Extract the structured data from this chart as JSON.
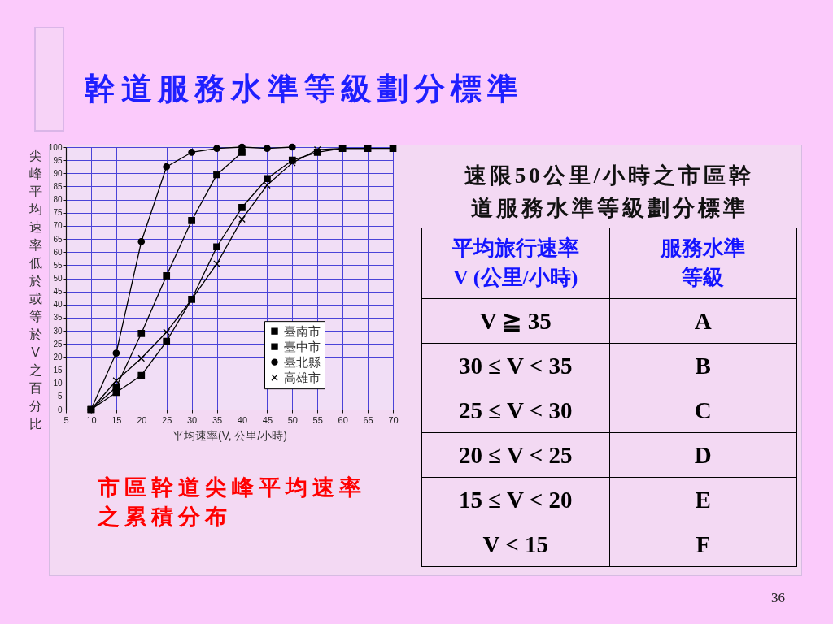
{
  "chart_data": [
    {
      "type": "line",
      "title": "幹道服務水準等級劃分標準",
      "xlabel": "平均速率(V, 公里/小時)",
      "ylabel": "尖峰平均速率低於或等於V之百分比",
      "series": [
        {
          "name": "臺南市",
          "color": "#000000",
          "marker": "square",
          "x": [
            10,
            15,
            20,
            25,
            30,
            35,
            40,
            45,
            50,
            55,
            60,
            65,
            70
          ],
          "values": [
            0,
            6.5,
            13,
            26,
            42,
            62,
            77,
            88,
            95,
            98,
            99.5,
            99.5,
            99.5
          ]
        },
        {
          "name": "臺中市",
          "color": "#000000",
          "marker": "square",
          "x": [
            10,
            15,
            20,
            25,
            30,
            35,
            40
          ],
          "values": [
            0,
            8.5,
            29,
            51,
            72,
            89.5,
            98
          ]
        },
        {
          "name": "臺北縣",
          "color": "#000000",
          "marker": "circle",
          "x": [
            10,
            15,
            20,
            25,
            30,
            35,
            40,
            45,
            50
          ],
          "values": [
            0,
            21.5,
            64,
            92.5,
            98,
            99.5,
            100,
            99.5,
            100
          ]
        },
        {
          "name": "高雄市",
          "color": "#000000",
          "marker": "cross",
          "x": [
            10,
            15,
            20,
            25,
            30,
            35,
            40,
            45,
            50,
            55,
            60,
            65
          ],
          "values": [
            0,
            11,
            19.5,
            29.5,
            42,
            55.5,
            72.5,
            85.5,
            94,
            99,
            99.5,
            99.5
          ]
        }
      ],
      "xlim": [
        5,
        70
      ],
      "xticks": [
        5,
        10,
        15,
        20,
        25,
        30,
        35,
        40,
        45,
        50,
        55,
        60,
        65,
        70
      ],
      "ylim": [
        0,
        100
      ],
      "yticks": [
        0,
        5,
        10,
        15,
        20,
        25,
        30,
        35,
        40,
        45,
        50,
        55,
        60,
        65,
        70,
        75,
        80,
        85,
        90,
        95,
        100
      ],
      "grid": true,
      "legend": "bottom right",
      "line_style": "solid",
      "annotations": [
        "市區幹道尖峰平均速率之累積分布",
        "36"
      ]
    },
    {
      "type": "other",
      "title": "速限50公里/小時之市區幹道服務水準等級劃分標準",
      "annotations": [
        "平均旅行速率 V (公里/小時)",
        "服務水準等級",
        "V ≧ 35",
        "A",
        "30 ≤ V < 35",
        "B",
        "25 ≤ V < 30",
        "C",
        "20 ≤ V < 25",
        "D",
        "15 ≤ V < 20",
        "E",
        "V < 15",
        "F"
      ]
    }
  ]
}
